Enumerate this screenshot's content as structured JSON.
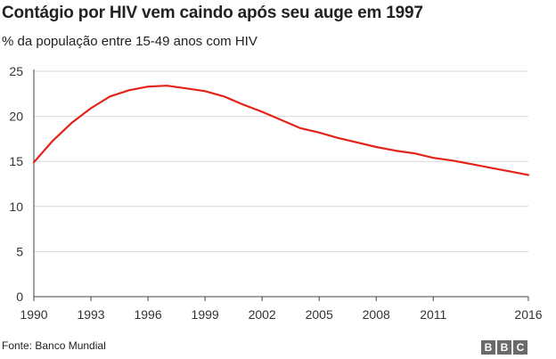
{
  "title": "Contágio por HIV vem caindo após seu auge em 1997",
  "subtitle": "% da população entre 15-49 anos com HIV",
  "source": "Fonte: Banco Mundial",
  "logo": [
    "B",
    "B",
    "C"
  ],
  "colors": {
    "line": "#e3231a",
    "grid": "#d9d9d9",
    "axis": "#444444"
  },
  "chart_data": {
    "type": "line",
    "title": "Contágio por HIV vem caindo após seu auge em 1997",
    "subtitle": "% da população entre 15-49 anos com HIV",
    "xlabel": "",
    "ylabel": "",
    "xlim": [
      1990,
      2016
    ],
    "ylim": [
      0,
      25
    ],
    "grid": true,
    "x_ticks": [
      "1990",
      "1993",
      "1996",
      "1999",
      "2002",
      "2005",
      "2008",
      "2011",
      "2016"
    ],
    "y_ticks": [
      "0",
      "5",
      "10",
      "15",
      "20",
      "25"
    ],
    "x": [
      1990,
      1991,
      1992,
      1993,
      1994,
      1995,
      1996,
      1997,
      1998,
      1999,
      2000,
      2001,
      2002,
      2003,
      2004,
      2005,
      2006,
      2007,
      2008,
      2009,
      2010,
      2011,
      2012,
      2013,
      2014,
      2015,
      2016
    ],
    "series": [
      {
        "values": [
          14.9,
          17.3,
          19.3,
          20.9,
          22.2,
          22.9,
          23.3,
          23.4,
          23.1,
          22.8,
          22.2,
          21.3,
          20.5,
          19.6,
          18.7,
          18.2,
          17.6,
          17.1,
          16.6,
          16.2,
          15.9,
          15.4,
          15.1,
          14.7,
          14.3,
          13.9,
          13.5
        ]
      }
    ]
  }
}
